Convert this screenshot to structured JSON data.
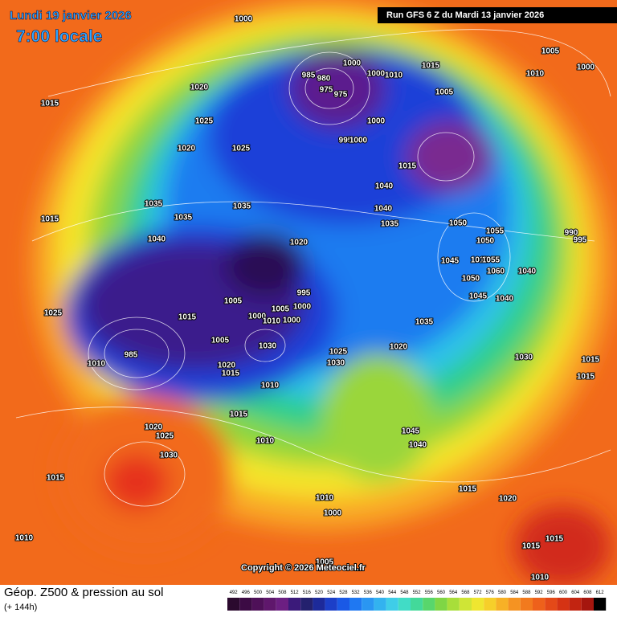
{
  "header": {
    "date": "Lundi 19 janvier 2026",
    "time": "7:00 locale",
    "run": "Run GFS 6 Z du Mardi 13 janvier 2026"
  },
  "copyright": "Copyright © 2026 Meteociel.fr",
  "footer": {
    "title": "Géop. Z500 & pression au sol",
    "lead": "(+ 144h)"
  },
  "scale": [
    492,
    496,
    500,
    504,
    508,
    512,
    516,
    520,
    524,
    528,
    532,
    536,
    540,
    544,
    548,
    552,
    556,
    560,
    564,
    568,
    572,
    576,
    580,
    584,
    588,
    592,
    596,
    600,
    604,
    608,
    612
  ],
  "isobar_labels": [
    1000,
    1015,
    1005,
    1000,
    1010,
    985,
    980,
    1000,
    1000,
    1010,
    975,
    975,
    1005,
    1020,
    1015,
    1025,
    1000,
    1020,
    1025,
    995,
    1000,
    1015,
    1040,
    1040,
    1035,
    1035,
    1035,
    1035,
    1015,
    1050,
    1055,
    1050,
    990,
    995,
    1040,
    1020,
    1045,
    1010,
    1055,
    1060,
    1040,
    1050,
    995,
    1005,
    1005,
    1000,
    1045,
    1040,
    1025,
    1015,
    1000,
    1010,
    1000,
    1035,
    1005,
    1030,
    1020,
    1025,
    1030,
    1030,
    1015,
    985,
    1010,
    1020,
    1015,
    1015,
    1010,
    1015,
    1045,
    1040,
    1020,
    1025,
    1010,
    1030,
    1015,
    1015,
    1010,
    1020,
    1000,
    1010,
    1015,
    1015,
    1005,
    1010
  ]
}
